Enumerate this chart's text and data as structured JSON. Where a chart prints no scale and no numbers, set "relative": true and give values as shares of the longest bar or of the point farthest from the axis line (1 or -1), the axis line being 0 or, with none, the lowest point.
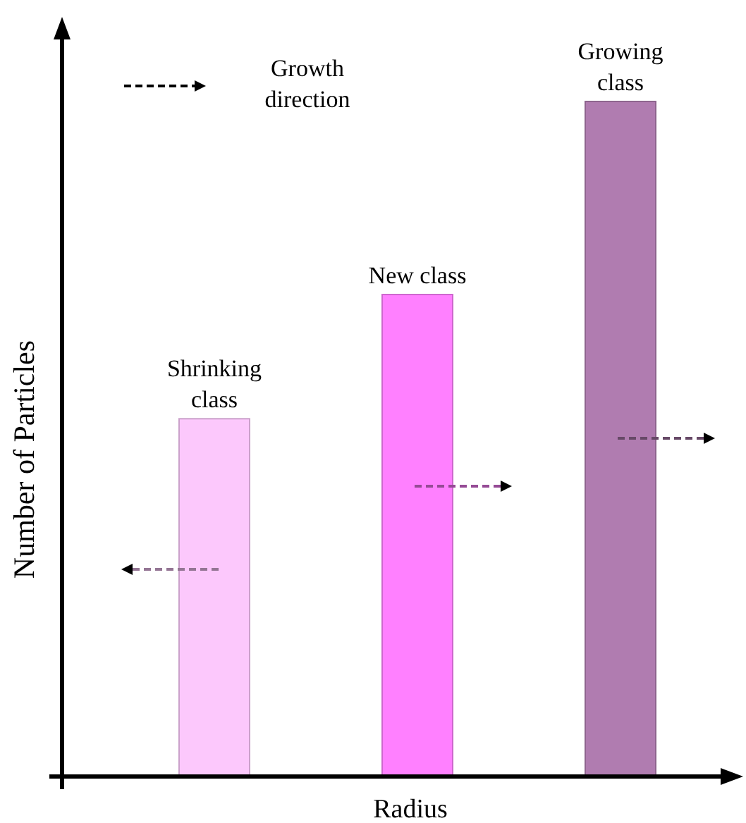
{
  "chart_data": {
    "type": "bar",
    "relative": true,
    "xlabel": "Radius",
    "ylabel": "Number of Particles",
    "categories": [
      null,
      null,
      null
    ],
    "values": [
      0.53,
      0.714,
      1
    ],
    "colors": [
      "#fcc8fc",
      "#ff80ff",
      "#b07cb0"
    ],
    "annotations": [
      "Growth direction",
      "Shrinking class",
      "New class",
      "Growing class"
    ]
  }
}
